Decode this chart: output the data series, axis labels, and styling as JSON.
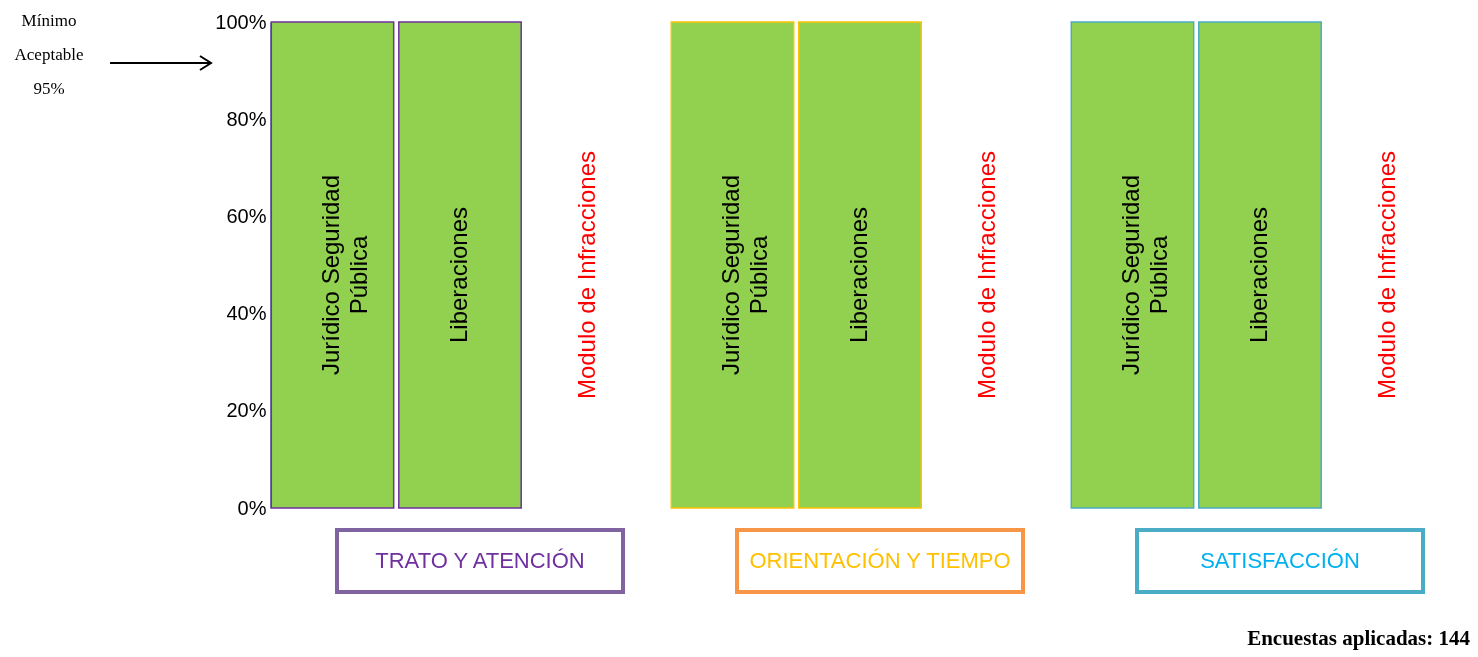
{
  "chart_data": [
    {
      "type": "bar",
      "xlabel": "TRATO Y ATENCIÓN",
      "categories": [
        "Jurídico Seguridad Pública",
        "Liberaciones",
        "Modulo de Infracciones"
      ],
      "series": [
        {
          "color": "#92d050",
          "values": [
            100,
            100,
            0
          ]
        }
      ],
      "ylim": [
        0,
        100
      ],
      "yticks": [
        {
          "value": 0,
          "label": "0%"
        },
        {
          "value": 20,
          "label": "20%"
        },
        {
          "value": 40,
          "label": "40%"
        },
        {
          "value": 60,
          "label": "60%"
        },
        {
          "value": 80,
          "label": "80%"
        },
        {
          "value": 100,
          "label": "100%"
        }
      ],
      "annotations": [
        "Mínimo Aceptable 95%"
      ]
    },
    {
      "type": "bar",
      "xlabel": "ORIENTACIÓN Y TIEMPO",
      "categories": [
        "Jurídico Seguridad Pública",
        "Liberaciones",
        "Modulo de Infracciones"
      ],
      "series": [
        {
          "color": "#92d050",
          "values": [
            100,
            100,
            0
          ]
        }
      ],
      "ylim": [
        0,
        100
      ],
      "tick_labels": false
    },
    {
      "type": "bar",
      "xlabel": "SATISFACCIÓN",
      "categories": [
        "Jurídico Seguridad Pública",
        "Liberaciones",
        "Modulo de Infracciones"
      ],
      "series": [
        {
          "color": "#92d050",
          "values": [
            100,
            100,
            0
          ]
        }
      ],
      "ylim": [
        0,
        100
      ],
      "tick_labels": false,
      "annotations": [
        "Encuestas aplicadas: 144"
      ]
    }
  ]
}
